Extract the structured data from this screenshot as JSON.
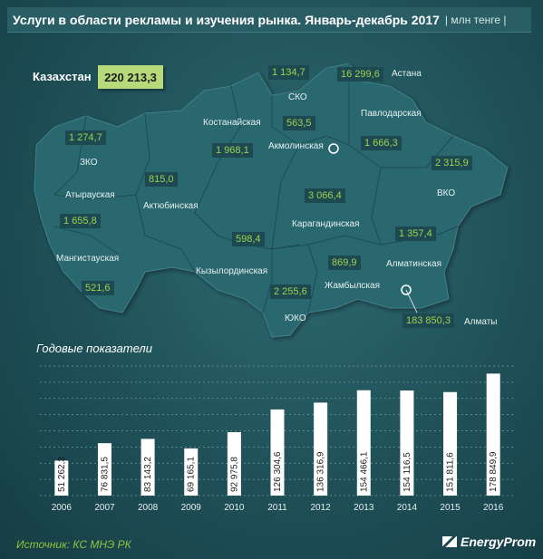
{
  "header": {
    "title": "Услуги в области  рекламы и изучения рынка. Январь-декабрь 2017",
    "unit": "| млн тенге |"
  },
  "total": {
    "label": "Казахстан",
    "value": "220 213,3"
  },
  "regions": [
    {
      "name": "СКО",
      "value": "1 134,7"
    },
    {
      "name": "Астана",
      "value": "16 299,6"
    },
    {
      "name": "Костанайская",
      "value": ""
    },
    {
      "name": "Акмолинская",
      "value": "563,5"
    },
    {
      "name": "Павлодарская",
      "value": "1 666,3"
    },
    {
      "name": "ЗКО",
      "value": "1 274,7"
    },
    {
      "name": "Костанайская-value",
      "value": "1 968,1"
    },
    {
      "name": "Атырауская",
      "value": "1 655,8"
    },
    {
      "name": "Актюбинская",
      "value": "815,0"
    },
    {
      "name": "Карагандинская",
      "value": "3 066,4"
    },
    {
      "name": "ВКО",
      "value": "2 315,9"
    },
    {
      "name": "Мангистауская",
      "value": "521,6"
    },
    {
      "name": "Кызылординская",
      "value": "598,4"
    },
    {
      "name": "Алматинская",
      "value": "1 357,4"
    },
    {
      "name": "Жамбылская",
      "value": "869,9"
    },
    {
      "name": "ЮКО",
      "value": "2 255,6"
    },
    {
      "name": "Алматы",
      "value": "183 850,3"
    }
  ],
  "map_labels": {
    "sko": "СКО",
    "astana": "Астана",
    "kostanay": "Костанайская",
    "akmola": "Акмолинская",
    "pavlodar": "Павлодарская",
    "zko": "ЗКО",
    "atyrau": "Атырауская",
    "aktobe": "Актюбинская",
    "karaganda": "Карагандинская",
    "vko": "ВКО",
    "mangistau": "Мангистауская",
    "kyzylorda": "Кызылординская",
    "almaty_obl": "Алматинская",
    "zhambyl": "Жамбылская",
    "yuko": "ЮКО",
    "almaty_city": "Алматы"
  },
  "map_values": {
    "sko": "1 134,7",
    "astana": "16 299,6",
    "akmola": "563,5",
    "pavlodar": "1 666,3",
    "zko": "1 274,7",
    "kostanay": "1 968,1",
    "atyrau": "1 655,8",
    "aktobe": "815,0",
    "karaganda": "3 066,4",
    "vko": "2 315,9",
    "mangistau": "521,6",
    "kyzylorda": "598,4",
    "almaty_obl": "1 357,4",
    "zhambyl": "869,9",
    "yuko": "2 255,6",
    "almaty_city": "183 850,3"
  },
  "chart_data": {
    "type": "bar",
    "title": "Годовые показатели",
    "categories": [
      "2006",
      "2007",
      "2008",
      "2009",
      "2010",
      "2011",
      "2012",
      "2013",
      "2014",
      "2015",
      "2016"
    ],
    "values": [
      51262.3,
      76831.5,
      83143.2,
      69165.1,
      92975.8,
      126304.6,
      136316.9,
      154466.1,
      154116.5,
      151811.6,
      178849.9
    ],
    "value_labels": [
      "51 262,3",
      "76 831,5",
      "83 143,2",
      "69 165,1",
      "92 975,8",
      "126 304,6",
      "136 316,9",
      "154 466,1",
      "154 116,5",
      "151 811,6",
      "178 849,9"
    ],
    "ylim": [
      0,
      190000
    ],
    "grid": true,
    "bar_color": "#ffffff"
  },
  "footer": {
    "source": "Источник: КС МНЭ РК",
    "logo_text": "EnergyProm"
  },
  "colors": {
    "accent_green": "#8fc43f",
    "value_box": "#b6d97a",
    "map_fill": "#2b6770"
  }
}
